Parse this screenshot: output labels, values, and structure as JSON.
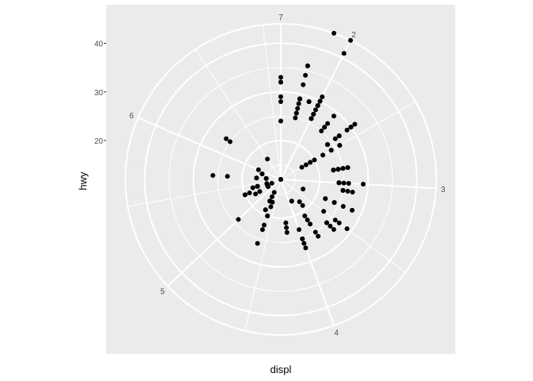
{
  "chart_data": {
    "type": "scatter",
    "coord": "polar",
    "theta_variable": "displ",
    "radius_variable": "hwy",
    "xlabel": "displ",
    "ylabel": "hwy",
    "x_ticks": [
      "2",
      "3",
      "4",
      "5",
      "6",
      "7"
    ],
    "y_ticks": [
      "20",
      "30",
      "40"
    ],
    "xlim": [
      1.6,
      7.0
    ],
    "ylim": [
      12,
      44
    ],
    "grid": true,
    "colors": {
      "panel": "#ebebeb",
      "grid": "#ffffff",
      "point": "#000000"
    },
    "points": [
      [
        1.8,
        29
      ],
      [
        1.8,
        29
      ],
      [
        2.0,
        31
      ],
      [
        2.0,
        30
      ],
      [
        2.8,
        26
      ],
      [
        2.8,
        26
      ],
      [
        3.1,
        27
      ],
      [
        1.8,
        26
      ],
      [
        1.8,
        25
      ],
      [
        2.0,
        28
      ],
      [
        2.0,
        27
      ],
      [
        2.8,
        25
      ],
      [
        2.8,
        25
      ],
      [
        3.1,
        25
      ],
      [
        3.1,
        25
      ],
      [
        2.8,
        24
      ],
      [
        3.1,
        25
      ],
      [
        4.2,
        23
      ],
      [
        5.3,
        20
      ],
      [
        5.3,
        15
      ],
      [
        5.3,
        20
      ],
      [
        5.7,
        17
      ],
      [
        6.0,
        17
      ],
      [
        5.7,
        26
      ],
      [
        5.7,
        23
      ],
      [
        6.2,
        26
      ],
      [
        6.2,
        25
      ],
      [
        7.0,
        24
      ],
      [
        5.3,
        19
      ],
      [
        5.3,
        14
      ],
      [
        5.7,
        15
      ],
      [
        6.5,
        17
      ],
      [
        2.4,
        27
      ],
      [
        2.4,
        30
      ],
      [
        3.1,
        26
      ],
      [
        3.5,
        29
      ],
      [
        3.6,
        26
      ],
      [
        2.4,
        24
      ],
      [
        3.0,
        24
      ],
      [
        3.3,
        22
      ],
      [
        3.3,
        22
      ],
      [
        3.3,
        24
      ],
      [
        3.3,
        24
      ],
      [
        3.3,
        17
      ],
      [
        3.8,
        22
      ],
      [
        3.8,
        21
      ],
      [
        3.8,
        23
      ],
      [
        4.0,
        23
      ],
      [
        3.7,
        19
      ],
      [
        3.7,
        18
      ],
      [
        3.9,
        17
      ],
      [
        3.9,
        17
      ],
      [
        4.7,
        19
      ],
      [
        4.7,
        19
      ],
      [
        4.7,
        12
      ],
      [
        4.7,
        17
      ],
      [
        5.2,
        15
      ],
      [
        5.2,
        17
      ],
      [
        3.9,
        17
      ],
      [
        4.7,
        12
      ],
      [
        4.7,
        17
      ],
      [
        4.7,
        16
      ],
      [
        5.2,
        18
      ],
      [
        5.7,
        15
      ],
      [
        5.9,
        16
      ],
      [
        4.7,
        12
      ],
      [
        4.7,
        17
      ],
      [
        4.7,
        17
      ],
      [
        4.7,
        15
      ],
      [
        5.2,
        17
      ],
      [
        5.2,
        12
      ],
      [
        5.7,
        17
      ],
      [
        5.9,
        16
      ],
      [
        4.6,
        17
      ],
      [
        5.4,
        15
      ],
      [
        5.4,
        17
      ],
      [
        4.0,
        26
      ],
      [
        4.0,
        25
      ],
      [
        4.6,
        26
      ],
      [
        5.0,
        24
      ],
      [
        4.2,
        21
      ],
      [
        4.2,
        22
      ],
      [
        4.6,
        23
      ],
      [
        4.6,
        22
      ],
      [
        4.6,
        20
      ],
      [
        5.4,
        17
      ],
      [
        5.4,
        17
      ],
      [
        3.8,
        26
      ],
      [
        3.8,
        25
      ],
      [
        4.0,
        27
      ],
      [
        4.0,
        25
      ],
      [
        4.6,
        18
      ],
      [
        5.4,
        18
      ],
      [
        4.6,
        20
      ],
      [
        5.4,
        17
      ],
      [
        1.8,
        29
      ],
      [
        1.8,
        29
      ],
      [
        1.8,
        29
      ],
      [
        2.0,
        30
      ],
      [
        2.0,
        29
      ],
      [
        2.0,
        26
      ],
      [
        2.0,
        29
      ],
      [
        2.2,
        29
      ],
      [
        2.2,
        26
      ],
      [
        2.4,
        27
      ],
      [
        2.4,
        30
      ],
      [
        3.0,
        24
      ],
      [
        3.0,
        24
      ],
      [
        3.5,
        26
      ],
      [
        1.6,
        28
      ],
      [
        1.6,
        33
      ],
      [
        1.6,
        32
      ],
      [
        1.6,
        32
      ],
      [
        1.6,
        29
      ],
      [
        1.8,
        32
      ],
      [
        1.8,
        34
      ],
      [
        1.8,
        36
      ],
      [
        1.8,
        36
      ],
      [
        2.0,
        29
      ],
      [
        2.0,
        26
      ],
      [
        2.0,
        27
      ],
      [
        2.4,
        30
      ],
      [
        2.4,
        31
      ],
      [
        2.5,
        26
      ],
      [
        2.5,
        26
      ],
      [
        3.3,
        28
      ],
      [
        3.3,
        26
      ],
      [
        1.8,
        29
      ],
      [
        1.8,
        28
      ],
      [
        1.8,
        27
      ],
      [
        2.4,
        24
      ],
      [
        2.4,
        24
      ],
      [
        2.5,
        24
      ],
      [
        2.5,
        22
      ],
      [
        2.5,
        19
      ],
      [
        2.5,
        20
      ],
      [
        2.5,
        17
      ],
      [
        2.5,
        12
      ],
      [
        2.5,
        19
      ],
      [
        2.5,
        18
      ],
      [
        2.2,
        27
      ],
      [
        2.2,
        25
      ],
      [
        2.4,
        26
      ],
      [
        3.0,
        26
      ],
      [
        3.0,
        25
      ],
      [
        3.5,
        27
      ],
      [
        2.2,
        26
      ],
      [
        2.4,
        29
      ],
      [
        3.0,
        29
      ],
      [
        3.5,
        23
      ],
      [
        2.0,
        44
      ],
      [
        2.0,
        41
      ],
      [
        1.9,
        44
      ],
      [
        1.9,
        29
      ],
      [
        1.9,
        29
      ],
      [
        2.5,
        24
      ],
      [
        2.8,
        23
      ],
      [
        2.8,
        24
      ],
      [
        2.8,
        24
      ],
      [
        2.8,
        23
      ],
      [
        1.8,
        26
      ],
      [
        2.0,
        30
      ],
      [
        2.0,
        26
      ],
      [
        2.8,
        23
      ],
      [
        3.6,
        27
      ],
      [
        3.6,
        25
      ],
      [
        3.6,
        25
      ]
    ]
  },
  "axis_titles": {
    "x": "displ",
    "y": "hwy"
  }
}
